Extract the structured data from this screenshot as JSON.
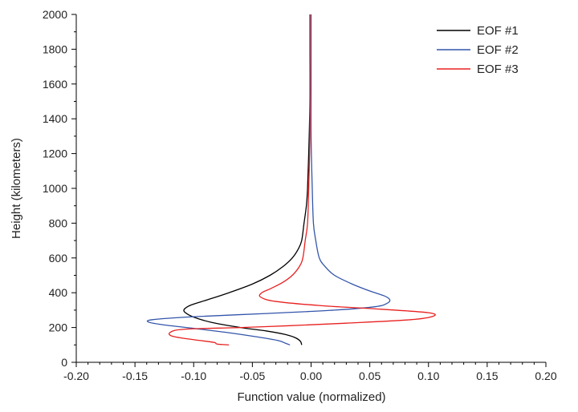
{
  "chart_data": {
    "type": "line",
    "title": "",
    "xlabel": "Function value (normalized)",
    "ylabel": "Height (kilometers)",
    "xlim": [
      -0.2,
      0.2
    ],
    "ylim": [
      0,
      2000
    ],
    "xticks": [
      -0.2,
      -0.15,
      -0.1,
      -0.05,
      0.0,
      0.05,
      0.1,
      0.15,
      0.2
    ],
    "xtick_labels": [
      "-0.20",
      "-0.15",
      "-0.10",
      "-0.05",
      "0.00",
      "0.05",
      "0.10",
      "0.15",
      "0.20"
    ],
    "yticks": [
      0,
      200,
      400,
      600,
      800,
      1000,
      1200,
      1400,
      1600,
      1800,
      2000
    ],
    "ytick_labels": [
      "0",
      "200",
      "400",
      "600",
      "800",
      "1000",
      "1200",
      "1400",
      "1600",
      "1800",
      "2000"
    ],
    "grid": false,
    "legend_position": "top-right",
    "series": [
      {
        "name": "EOF #1",
        "color": "#000000",
        "points": [
          [
            -0.008,
            100
          ],
          [
            -0.009,
            120
          ],
          [
            -0.013,
            140
          ],
          [
            -0.022,
            160
          ],
          [
            -0.038,
            180
          ],
          [
            -0.06,
            200
          ],
          [
            -0.085,
            230
          ],
          [
            -0.1,
            260
          ],
          [
            -0.107,
            285
          ],
          [
            -0.108,
            305
          ],
          [
            -0.102,
            330
          ],
          [
            -0.088,
            360
          ],
          [
            -0.07,
            400
          ],
          [
            -0.05,
            450
          ],
          [
            -0.035,
            500
          ],
          [
            -0.024,
            550
          ],
          [
            -0.016,
            600
          ],
          [
            -0.011,
            650
          ],
          [
            -0.008,
            700
          ],
          [
            -0.006,
            800
          ],
          [
            -0.004,
            900
          ],
          [
            -0.003,
            1000
          ],
          [
            -0.002,
            1200
          ],
          [
            -0.001,
            1500
          ],
          [
            -0.001,
            1800
          ],
          [
            -0.001,
            2000
          ]
        ]
      },
      {
        "name": "EOF #2",
        "color": "#3355aa",
        "points": [
          [
            -0.018,
            100
          ],
          [
            -0.022,
            110
          ],
          [
            -0.028,
            125
          ],
          [
            -0.045,
            145
          ],
          [
            -0.07,
            170
          ],
          [
            -0.1,
            195
          ],
          [
            -0.125,
            215
          ],
          [
            -0.138,
            230
          ],
          [
            -0.135,
            245
          ],
          [
            -0.1,
            262
          ],
          [
            -0.04,
            280
          ],
          [
            0.02,
            300
          ],
          [
            0.055,
            320
          ],
          [
            0.065,
            340
          ],
          [
            0.067,
            360
          ],
          [
            0.063,
            380
          ],
          [
            0.05,
            410
          ],
          [
            0.035,
            450
          ],
          [
            0.02,
            500
          ],
          [
            0.012,
            550
          ],
          [
            0.007,
            600
          ],
          [
            0.004,
            700
          ],
          [
            0.002,
            800
          ],
          [
            0.001,
            1000
          ],
          [
            0.0,
            1300
          ],
          [
            0.0,
            1600
          ],
          [
            0.0,
            2000
          ]
        ]
      },
      {
        "name": "EOF #3",
        "color": "#e82020",
        "points": [
          [
            -0.07,
            100
          ],
          [
            -0.08,
            105
          ],
          [
            -0.083,
            115
          ],
          [
            -0.1,
            130
          ],
          [
            -0.118,
            150
          ],
          [
            -0.12,
            172
          ],
          [
            -0.108,
            190
          ],
          [
            -0.06,
            200
          ],
          [
            -0.02,
            210
          ],
          [
            0.03,
            225
          ],
          [
            0.085,
            245
          ],
          [
            0.104,
            265
          ],
          [
            0.1,
            285
          ],
          [
            0.06,
            305
          ],
          [
            0.01,
            325
          ],
          [
            -0.03,
            350
          ],
          [
            -0.043,
            375
          ],
          [
            -0.042,
            400
          ],
          [
            -0.034,
            425
          ],
          [
            -0.024,
            460
          ],
          [
            -0.016,
            500
          ],
          [
            -0.01,
            550
          ],
          [
            -0.007,
            600
          ],
          [
            -0.005,
            700
          ],
          [
            -0.003,
            800
          ],
          [
            -0.002,
            1000
          ],
          [
            -0.001,
            1300
          ],
          [
            -0.001,
            1600
          ],
          [
            -0.001,
            2000
          ]
        ]
      }
    ]
  }
}
